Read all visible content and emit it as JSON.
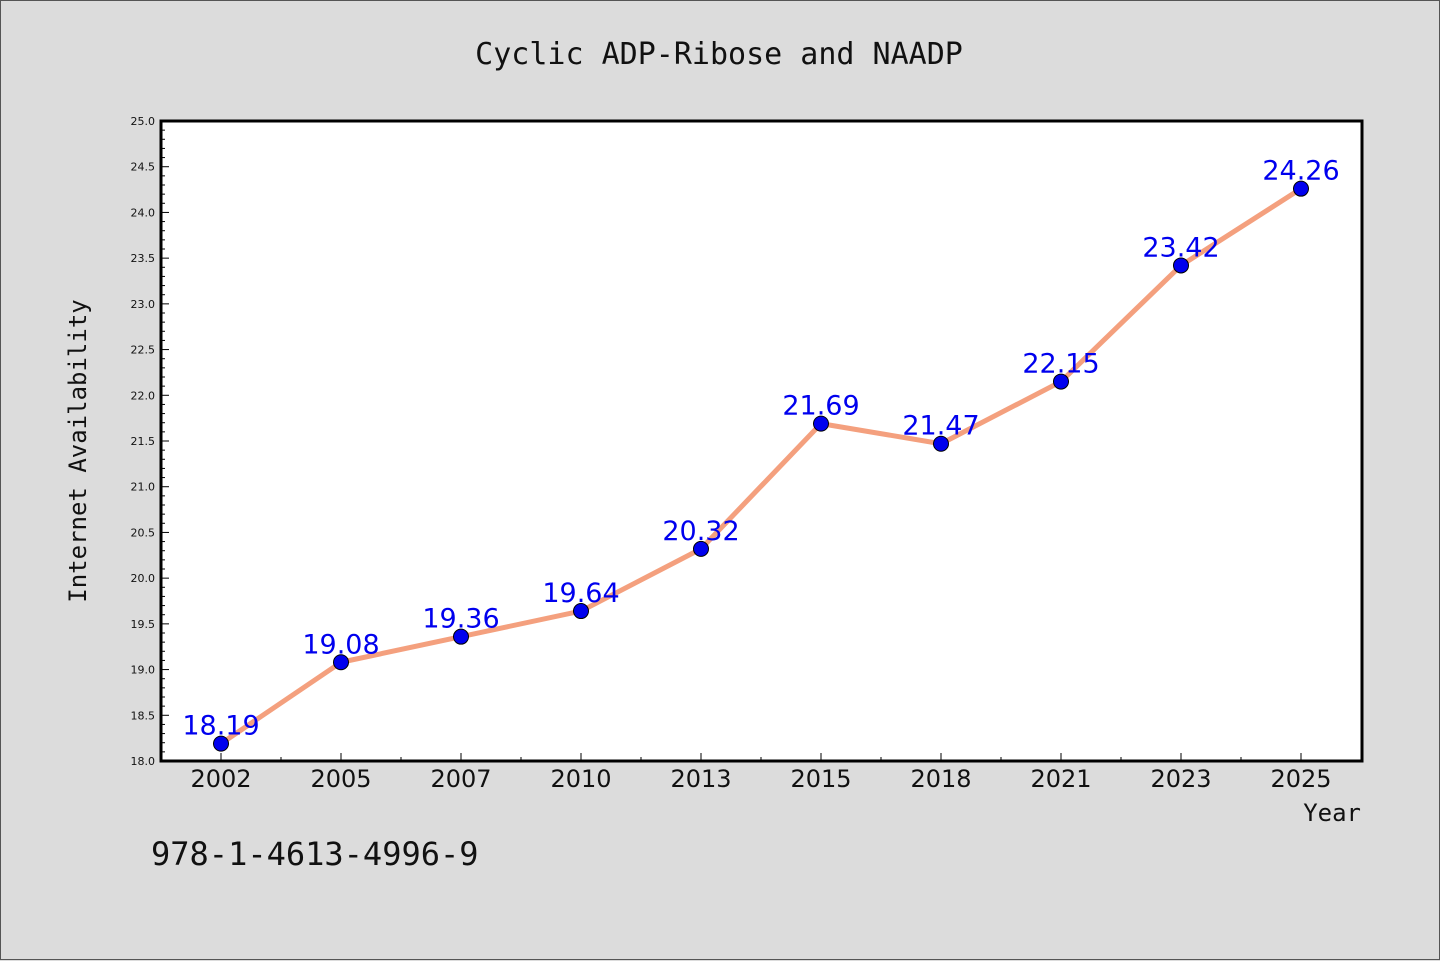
{
  "chart_data": {
    "type": "line",
    "title": "Cyclic ADP-Ribose and NAADP",
    "xlabel": "Year",
    "ylabel": "Internet Availability",
    "categories": [
      "2002",
      "2005",
      "2007",
      "2010",
      "2013",
      "2015",
      "2018",
      "2021",
      "2023",
      "2025"
    ],
    "values": [
      18.19,
      19.08,
      19.36,
      19.64,
      20.32,
      21.69,
      21.47,
      22.15,
      23.42,
      24.26
    ],
    "value_labels": [
      "18.19",
      "19.08",
      "19.36",
      "19.64",
      "20.32",
      "21.69",
      "21.47",
      "22.15",
      "23.42",
      "24.26"
    ],
    "ylim": [
      18.0,
      25.0
    ],
    "yticks": [
      "18.0",
      "18.5",
      "19.0",
      "19.5",
      "20.0",
      "20.5",
      "21.0",
      "21.5",
      "22.0",
      "22.5",
      "23.0",
      "23.5",
      "24.0",
      "24.5",
      "25.0"
    ],
    "grid": false,
    "line_color": "#f4a07e",
    "marker_color": "#0000ee",
    "label_color": "#0000ee"
  },
  "footer_text": "978-1-4613-4996-9"
}
